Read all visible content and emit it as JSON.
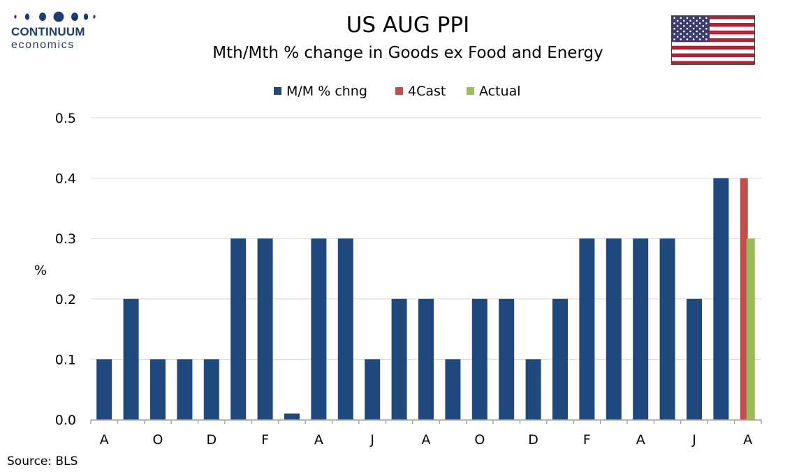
{
  "logo": {
    "name": "CONTINUUM",
    "sub": "economics",
    "color": "#1c3d6e"
  },
  "header": {
    "title": "US AUG PPI",
    "subtitle": "Mth/Mth % change in Goods ex Food and Energy"
  },
  "flag_icon": "us-flag-icon",
  "source": "Source: BLS",
  "colors": {
    "mm": "#1f497d",
    "forecast": "#c0504d",
    "actual": "#9bbb59",
    "gridline": "#d9d9d9",
    "axis": "#a6a6a6"
  },
  "chart_data": {
    "type": "bar",
    "ylabel": "%",
    "ylim": [
      0,
      0.5
    ],
    "yticks": [
      "0.0",
      "0.1",
      "0.2",
      "0.3",
      "0.4",
      "0.5"
    ],
    "grid": true,
    "legend_position": "top-center",
    "tick_labels": [
      "A",
      "O",
      "D",
      "F",
      "A",
      "J",
      "A",
      "O",
      "D",
      "F",
      "A",
      "J",
      "A"
    ],
    "series": [
      {
        "name": "M/M % chng",
        "color": "#1f497d",
        "values": [
          0.1,
          0.2,
          0.1,
          0.1,
          0.1,
          0.3,
          0.3,
          0.01,
          0.3,
          0.3,
          0.1,
          0.2,
          0.2,
          0.1,
          0.2,
          0.2,
          0.1,
          0.2,
          0.3,
          0.3,
          0.3,
          0.3,
          0.2,
          0.4
        ]
      },
      {
        "name": "4Cast",
        "color": "#c0504d",
        "values": [
          0.4
        ]
      },
      {
        "name": "Actual",
        "color": "#9bbb59",
        "values": [
          0.3
        ]
      }
    ]
  }
}
